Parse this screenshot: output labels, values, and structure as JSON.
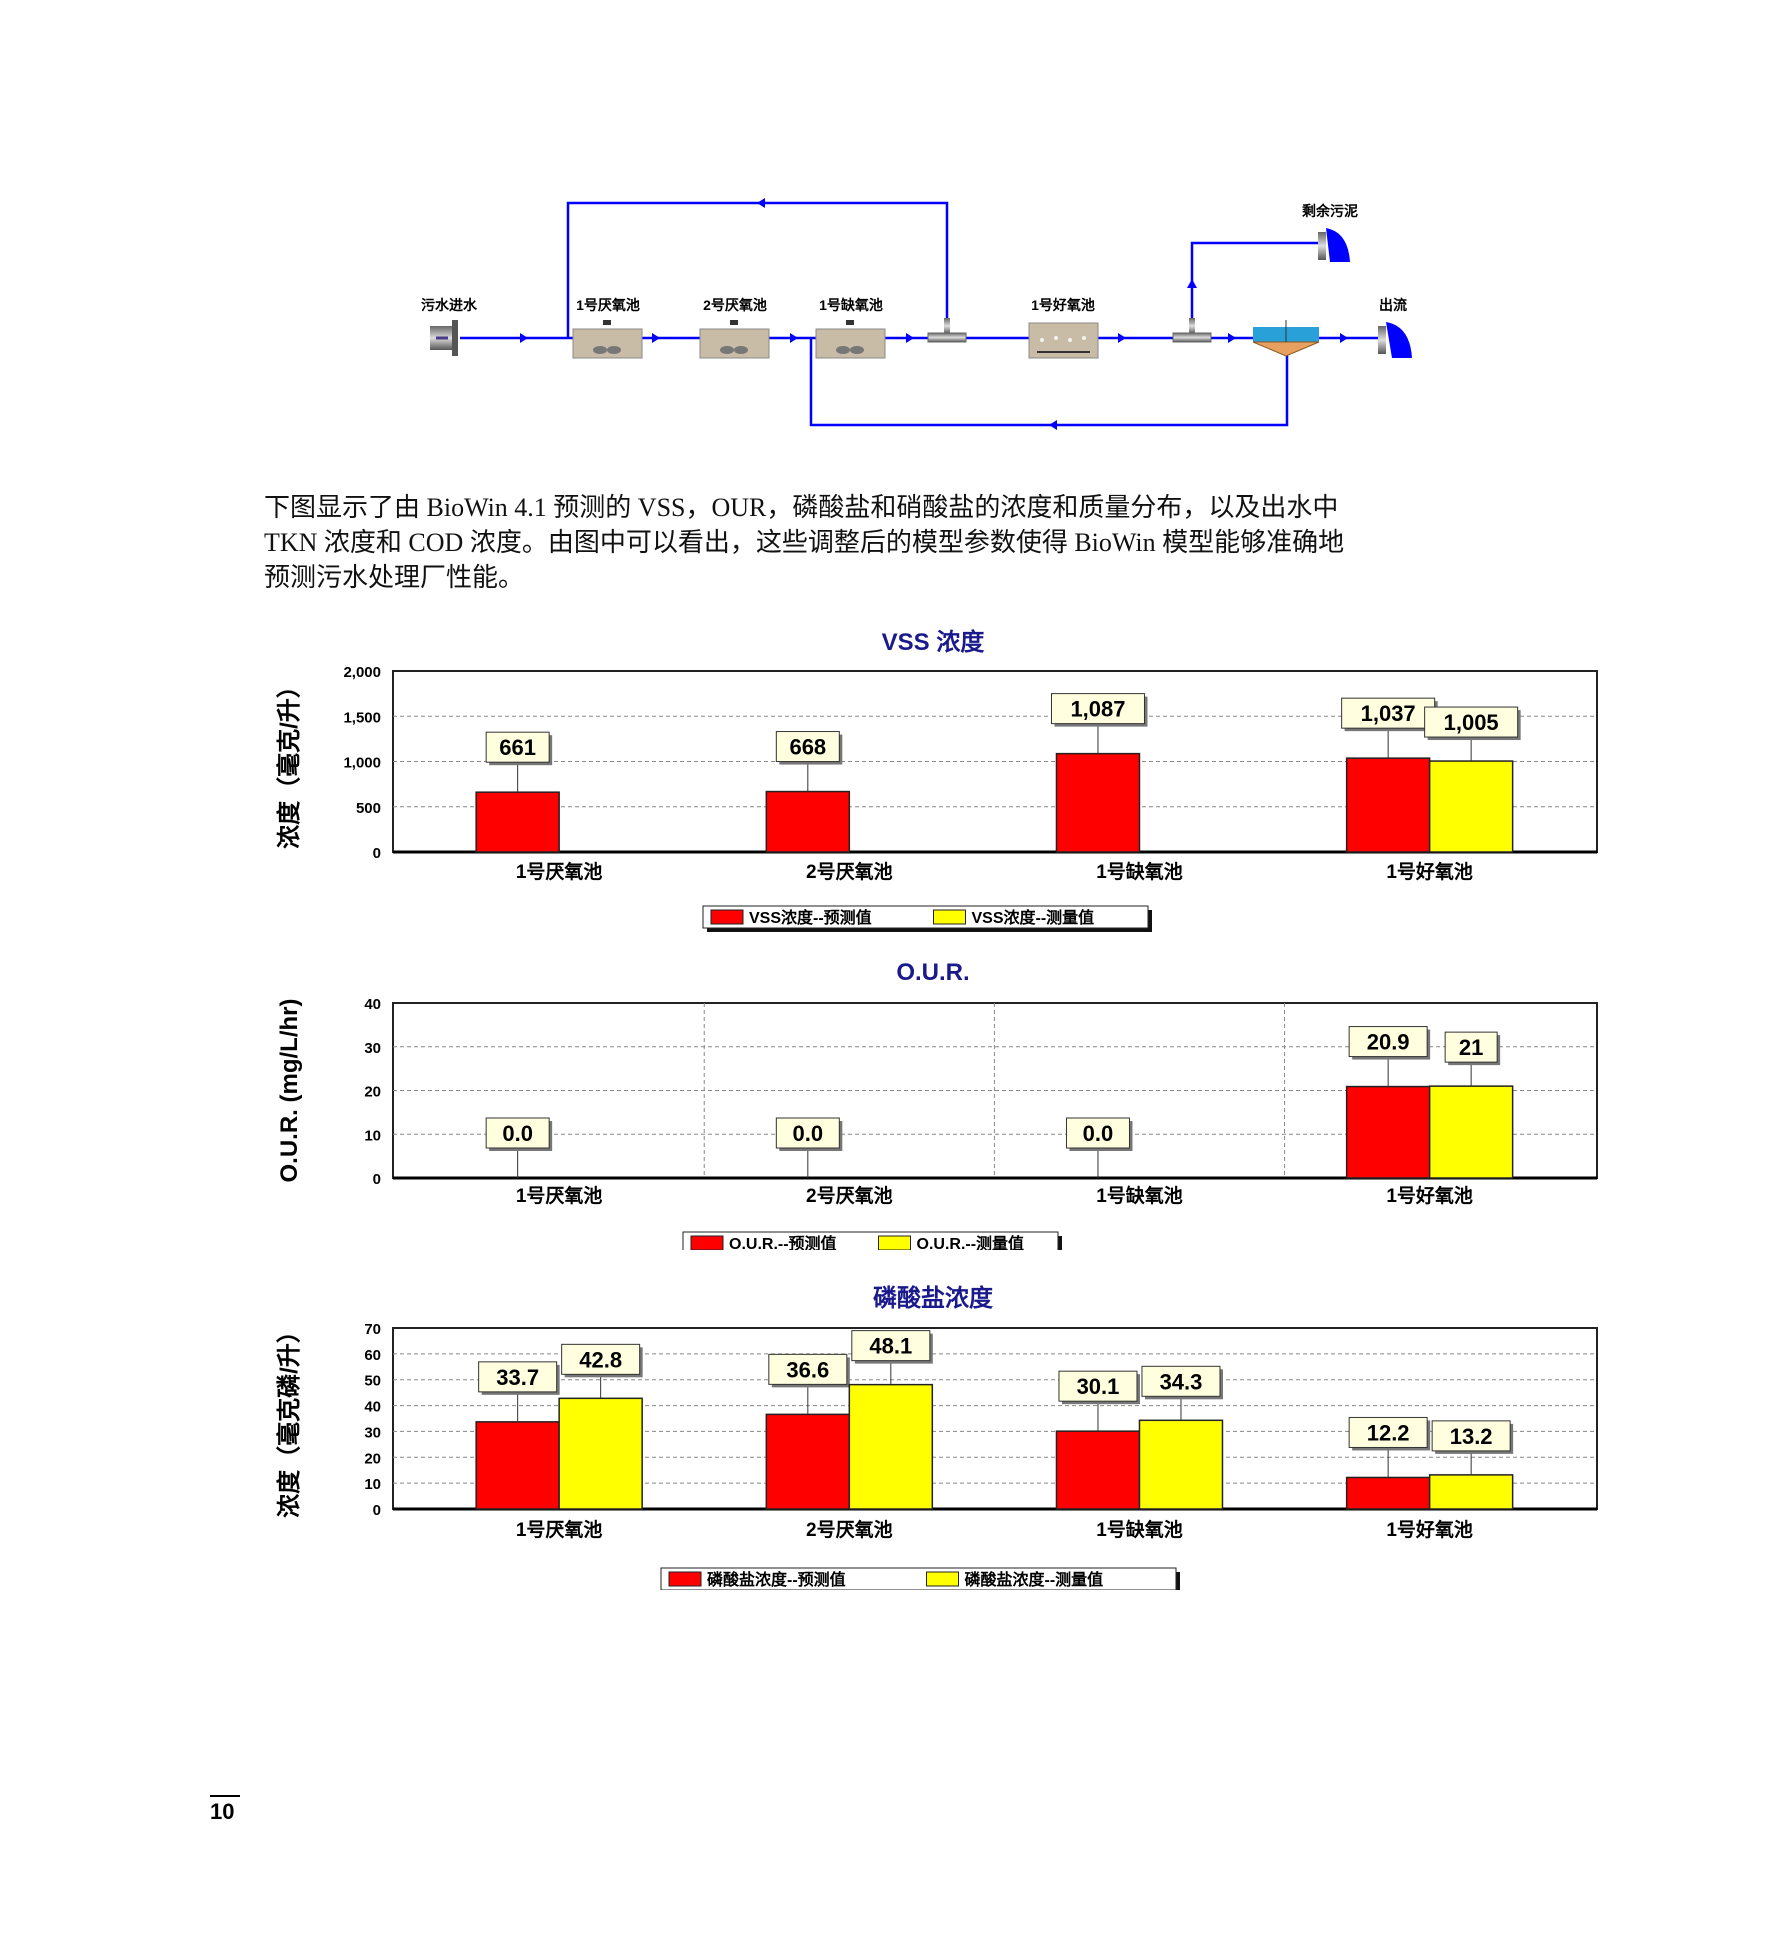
{
  "diagram": {
    "influent": "污水进水",
    "anaerobic1": "1号厌氧池",
    "anaerobic2": "2号厌氧池",
    "anoxic1": "1号缺氧池",
    "aerobic1": "1号好氧池",
    "waste_sludge": "剩余污泥",
    "effluent": "出流",
    "line_color": "#0000FF"
  },
  "paragraph": {
    "lines": [
      "下图显示了由 BioWin 4.1 预测的 VSS，OUR，磷酸盐和硝酸盐的浓度和质量分布，以及出水中",
      "TKN 浓度和 COD 浓度。由图中可以看出，这些调整后的模型参数使得 BioWin 模型能够准确地",
      "预测污水处理厂性能。"
    ]
  },
  "chart_data": [
    {
      "type": "bar",
      "title": "VSS 浓度",
      "ylabel": "浓度（毫克/升）",
      "xlabel": "",
      "categories": [
        "1号厌氧池",
        "2号厌氧池",
        "1号缺氧池",
        "1号好氧池"
      ],
      "ylim": [
        0,
        2000
      ],
      "yticks": [
        0,
        500,
        1000,
        1500,
        2000
      ],
      "ytick_labels": [
        "0",
        "500",
        "1,000",
        "1,500",
        "2,000"
      ],
      "grid": "horizontal",
      "legend_position": "bottom-center",
      "series": [
        {
          "name": "VSS浓度--预测值",
          "color": "#FF0000",
          "values": [
            661,
            668,
            1087,
            1037
          ],
          "labels": [
            "661",
            "668",
            "1,087",
            "1,037"
          ]
        },
        {
          "name": "VSS浓度--测量值",
          "color": "#FFFF00",
          "values": [
            null,
            null,
            null,
            1005
          ],
          "labels": [
            null,
            null,
            null,
            "1,005"
          ]
        }
      ]
    },
    {
      "type": "bar",
      "title": "O.U.R.",
      "ylabel": "O.U.R. (mg/L/hr)",
      "xlabel": "",
      "categories": [
        "1号厌氧池",
        "2号厌氧池",
        "1号缺氧池",
        "1号好氧池"
      ],
      "ylim": [
        0,
        40
      ],
      "yticks": [
        0,
        10,
        20,
        30,
        40
      ],
      "ytick_labels": [
        "0",
        "10",
        "20",
        "30",
        "40"
      ],
      "grid": "both",
      "legend_position": "bottom-center",
      "series": [
        {
          "name": "O.U.R.--预测值",
          "color": "#FF0000",
          "values": [
            0.0,
            0.0,
            0.0,
            20.9
          ],
          "labels": [
            "0.0",
            "0.0",
            "0.0",
            "20.9"
          ]
        },
        {
          "name": "O.U.R.--测量值",
          "color": "#FFFF00",
          "values": [
            null,
            null,
            null,
            21
          ],
          "labels": [
            null,
            null,
            null,
            "21"
          ]
        }
      ]
    },
    {
      "type": "bar",
      "title": "磷酸盐浓度",
      "ylabel": "浓度（毫克磷/升）",
      "xlabel": "",
      "categories": [
        "1号厌氧池",
        "2号厌氧池",
        "1号缺氧池",
        "1号好氧池"
      ],
      "ylim": [
        0,
        70
      ],
      "yticks": [
        0,
        10,
        20,
        30,
        40,
        50,
        60,
        70
      ],
      "ytick_labels": [
        "0",
        "10",
        "20",
        "30",
        "40",
        "50",
        "60",
        "70"
      ],
      "grid": "horizontal",
      "legend_position": "bottom-center",
      "series": [
        {
          "name": "磷酸盐浓度--预测值",
          "color": "#FF0000",
          "values": [
            33.7,
            36.6,
            30.1,
            12.2
          ],
          "labels": [
            "33.7",
            "36.6",
            "30.1",
            "12.2"
          ]
        },
        {
          "name": "磷酸盐浓度--测量值",
          "color": "#FFFF00",
          "values": [
            42.8,
            48.1,
            34.3,
            13.2
          ],
          "labels": [
            "42.8",
            "48.1",
            "34.3",
            "13.2"
          ]
        }
      ]
    }
  ],
  "page_number": "10"
}
